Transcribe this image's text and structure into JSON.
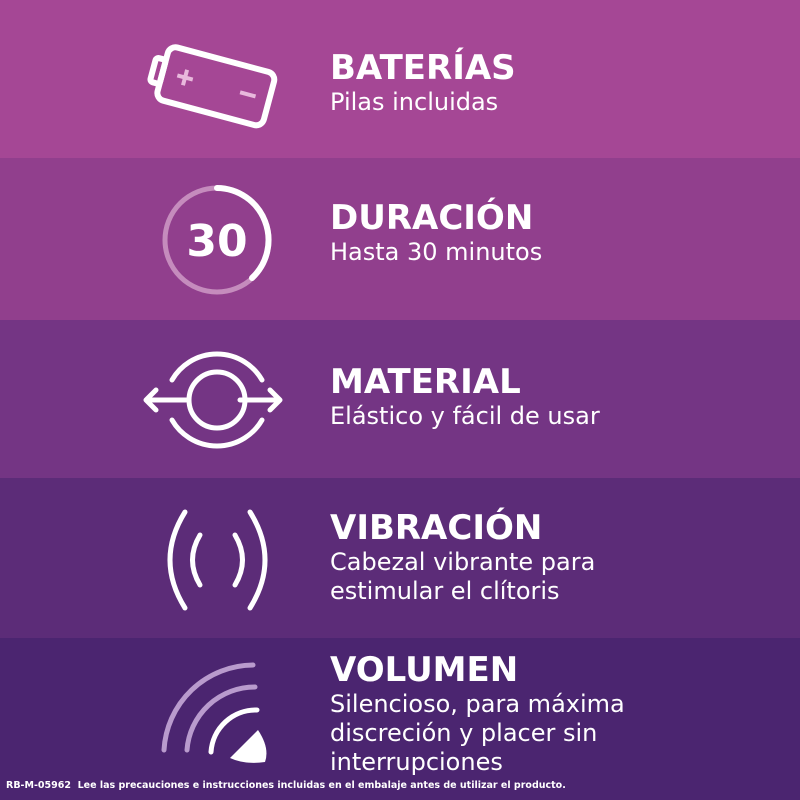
{
  "rows": [
    {
      "title": "BATERÍAS",
      "lines": [
        "Pilas incluidas"
      ],
      "icon": "battery-icon",
      "color": "#a54795"
    },
    {
      "title": "DURACIÓN",
      "lines": [
        "Hasta 30 minutos"
      ],
      "icon": "timer-30-icon",
      "icon_text": "30",
      "color": "#913f8d"
    },
    {
      "title": "MATERIAL",
      "lines": [
        "Elástico y fácil de usar"
      ],
      "icon": "stretch-circle-icon",
      "color": "#743584"
    },
    {
      "title": "VIBRACIÓN",
      "lines": [
        "Cabezal vibrante para",
        "estimular el clítoris"
      ],
      "icon": "vibration-icon",
      "color": "#5c2c78"
    },
    {
      "title": "VOLUMEN",
      "lines": [
        "Silencioso, para máxima",
        "discreción y placer sin",
        "interrupciones"
      ],
      "icon": "volume-icon",
      "color": "#4b2570"
    }
  ],
  "footer": {
    "code": "RB-M-05962",
    "text": "Lee las precauciones e instrucciones incluidas en el embalaje antes de utilizar el producto."
  }
}
